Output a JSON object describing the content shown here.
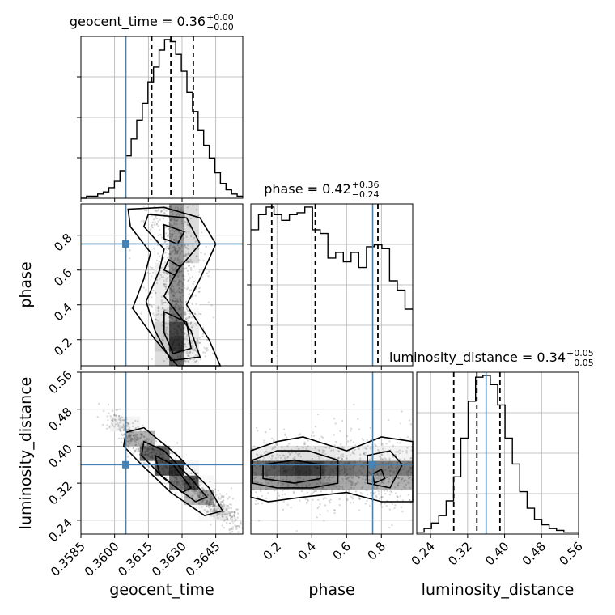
{
  "chart_data": {
    "type": "corner",
    "params": [
      {
        "key": "geocent_time",
        "label": "geocent_time",
        "range": [
          0.3585,
          0.3657
        ],
        "ticks": [
          0.3585,
          0.36,
          0.3615,
          0.363,
          0.3645
        ],
        "tick_labels": [
          "0.3585",
          "0.3600",
          "0.3615",
          "0.3630",
          "0.3645"
        ],
        "truth": 0.3605,
        "quantiles": [
          0.36165,
          0.3625,
          0.3635
        ],
        "title": {
          "main": "geocent_time = 0.36",
          "upper": "+0.00",
          "lower": "−0.00"
        }
      },
      {
        "key": "phase",
        "label": "phase",
        "range": [
          0.05,
          0.98
        ],
        "ticks": [
          0.2,
          0.4,
          0.6,
          0.8
        ],
        "tick_labels": [
          "0.2",
          "0.4",
          "0.6",
          "0.8"
        ],
        "truth": 0.75,
        "quantiles": [
          0.17,
          0.42,
          0.78
        ],
        "title": {
          "main": "phase = 0.42",
          "upper": "+0.36",
          "lower": "−0.24"
        }
      },
      {
        "key": "luminosity_distance",
        "label": "luminosity_distance",
        "range": [
          0.21,
          0.56
        ],
        "ticks": [
          0.24,
          0.32,
          0.4,
          0.48,
          0.56
        ],
        "tick_labels": [
          "0.24",
          "0.32",
          "0.40",
          "0.48",
          "0.56"
        ],
        "truth": 0.36,
        "quantiles": [
          0.29,
          0.34,
          0.39
        ],
        "title": {
          "main": "luminosity_distance = 0.34",
          "upper": "+0.05",
          "lower": "−0.05"
        }
      }
    ],
    "histograms": [
      {
        "param": "geocent_time",
        "counts": [
          0,
          1,
          1,
          2,
          3,
          5,
          8,
          13,
          20,
          28,
          37,
          45,
          55,
          62,
          70,
          75,
          74,
          68,
          60,
          50,
          41,
          32,
          25,
          19,
          12,
          7,
          4,
          2,
          1
        ]
      },
      {
        "param": "phase",
        "counts": [
          72,
          80,
          84,
          80,
          77,
          80,
          81,
          84,
          72,
          70,
          57,
          60,
          55,
          60,
          52,
          63,
          64,
          62,
          45,
          40,
          30
        ]
      },
      {
        "param": "luminosity_distance",
        "counts": [
          1,
          3,
          6,
          10,
          18,
          31,
          52,
          72,
          85,
          86,
          81,
          70,
          52,
          38,
          23,
          14,
          8,
          5,
          3,
          2,
          1,
          1
        ]
      }
    ],
    "truth_color": "#4682b4",
    "grid": true
  }
}
